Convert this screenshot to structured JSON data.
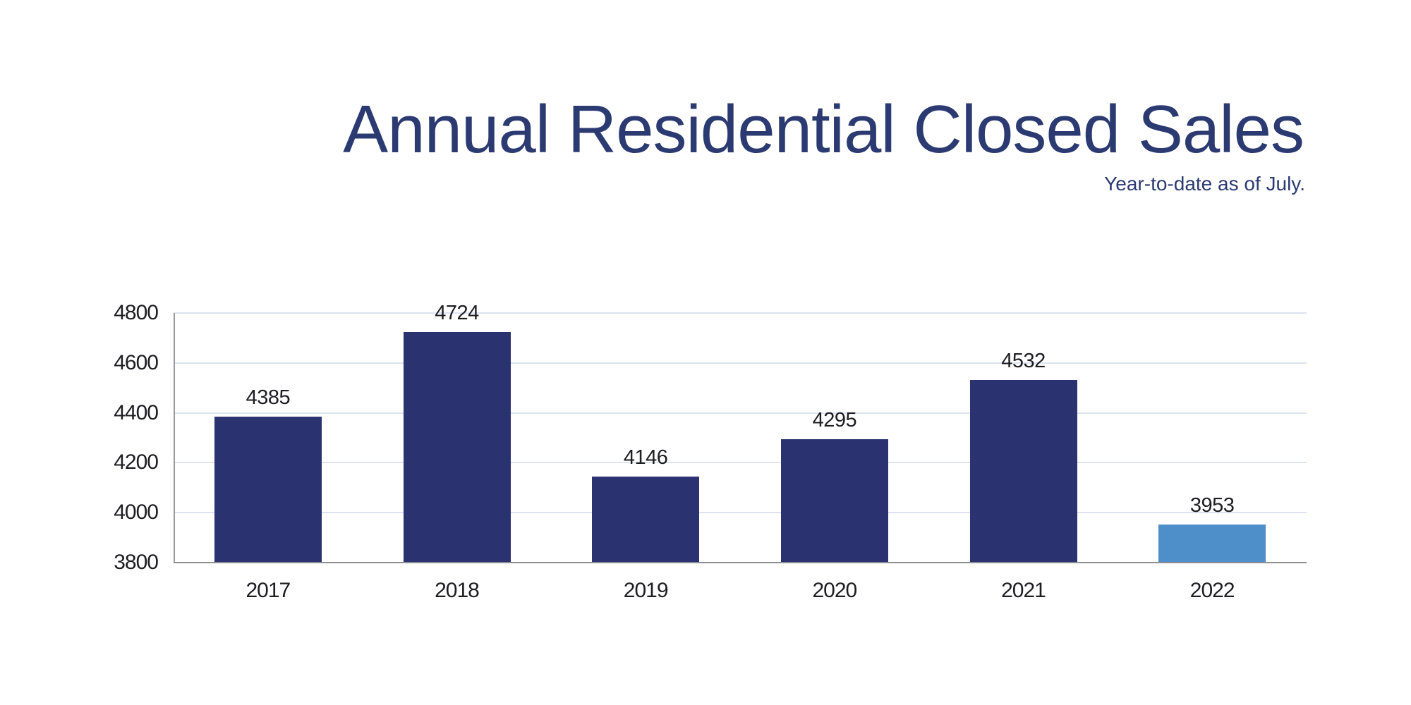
{
  "header": {
    "title": "Annual Residential Closed Sales",
    "subtitle": "Year-to-date as of July."
  },
  "chart_data": {
    "type": "bar",
    "title": "Annual Residential Closed Sales",
    "subtitle": "Year-to-date as of July.",
    "categories": [
      "2017",
      "2018",
      "2019",
      "2020",
      "2021",
      "2022"
    ],
    "values": [
      4385,
      4724,
      4146,
      4295,
      4532,
      3953
    ],
    "xlabel": "",
    "ylabel": "",
    "ylim": [
      3800,
      4800
    ],
    "yticks": [
      3800,
      4000,
      4200,
      4400,
      4600,
      4800
    ],
    "grid": true,
    "legend": false,
    "data_labels": true,
    "highlight_index": 5,
    "colors": {
      "bar_default": "#2b3270",
      "bar_highlight": "#4e8ec9",
      "title": "#2c3a72",
      "gridline": "#dde3f0",
      "axis_line": "#8d8d94",
      "tick_label": "#1d1d22",
      "background": "#ffffff"
    }
  }
}
